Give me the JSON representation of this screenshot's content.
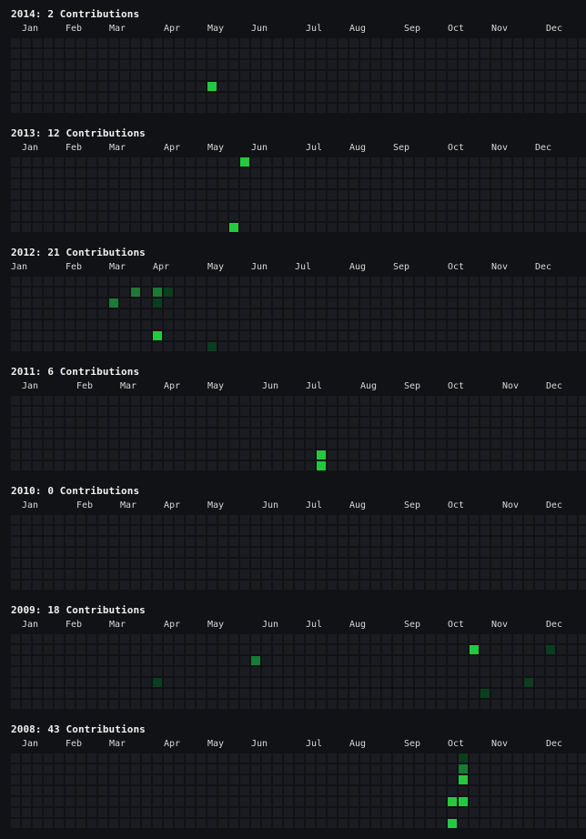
{
  "colors": {
    "background": "#111215",
    "empty": "#1a1c21",
    "level1": "#0b3d1f",
    "level2": "#1a7a36",
    "level3": "#26c840"
  },
  "chart_data": [
    {
      "type": "heatmap",
      "year": 2014,
      "title": "2014: 2 Contributions",
      "months": [
        "Jan",
        "Feb",
        "Mar",
        "Apr",
        "May",
        "Jun",
        "Jul",
        "Aug",
        "Sep",
        "Oct",
        "Nov",
        "Dec"
      ],
      "cells": [
        {
          "week": 18,
          "day": 4,
          "level": 3
        }
      ]
    },
    {
      "type": "heatmap",
      "year": 2013,
      "title": "2013: 12 Contributions",
      "months": [
        "Jan",
        "Feb",
        "Mar",
        "Apr",
        "May",
        "Jun",
        "Jul",
        "Aug",
        "Sep",
        "Oct",
        "Nov",
        "Dec"
      ],
      "cells": [
        {
          "week": 21,
          "day": 0,
          "level": 3
        },
        {
          "week": 20,
          "day": 6,
          "level": 3
        }
      ]
    },
    {
      "type": "heatmap",
      "year": 2012,
      "title": "2012: 21 Contributions",
      "months": [
        "Jan",
        "Feb",
        "Mar",
        "Apr",
        "May",
        "Jun",
        "Jul",
        "Aug",
        "Sep",
        "Oct",
        "Nov",
        "Dec"
      ],
      "cells": [
        {
          "week": 11,
          "day": 1,
          "level": 2
        },
        {
          "week": 13,
          "day": 1,
          "level": 2
        },
        {
          "week": 14,
          "day": 1,
          "level": 1
        },
        {
          "week": 9,
          "day": 2,
          "level": 2
        },
        {
          "week": 13,
          "day": 2,
          "level": 1
        },
        {
          "week": 13,
          "day": 5,
          "level": 3
        },
        {
          "week": 18,
          "day": 6,
          "level": 1
        }
      ]
    },
    {
      "type": "heatmap",
      "year": 2011,
      "title": "2011: 6 Contributions",
      "months": [
        "Jan",
        "Feb",
        "Mar",
        "Apr",
        "May",
        "Jun",
        "Jul",
        "Aug",
        "Sep",
        "Oct",
        "Nov",
        "Dec"
      ],
      "cells": [
        {
          "week": 28,
          "day": 5,
          "level": 3
        },
        {
          "week": 28,
          "day": 6,
          "level": 3
        }
      ]
    },
    {
      "type": "heatmap",
      "year": 2010,
      "title": "2010: 0 Contributions",
      "months": [
        "Jan",
        "Feb",
        "Mar",
        "Apr",
        "May",
        "Jun",
        "Jul",
        "Aug",
        "Sep",
        "Oct",
        "Nov",
        "Dec"
      ],
      "cells": []
    },
    {
      "type": "heatmap",
      "year": 2009,
      "title": "2009: 18 Contributions",
      "months": [
        "Jan",
        "Feb",
        "Mar",
        "Apr",
        "May",
        "Jun",
        "Jul",
        "Aug",
        "Sep",
        "Oct",
        "Nov",
        "Dec"
      ],
      "cells": [
        {
          "week": 42,
          "day": 1,
          "level": 3
        },
        {
          "week": 49,
          "day": 1,
          "level": 1
        },
        {
          "week": 22,
          "day": 2,
          "level": 2
        },
        {
          "week": 13,
          "day": 4,
          "level": 1
        },
        {
          "week": 47,
          "day": 4,
          "level": 1
        },
        {
          "week": 43,
          "day": 5,
          "level": 1
        }
      ]
    },
    {
      "type": "heatmap",
      "year": 2008,
      "title": "2008: 43 Contributions",
      "months": [
        "Jan",
        "Feb",
        "Mar",
        "Apr",
        "May",
        "Jun",
        "Jul",
        "Aug",
        "Sep",
        "Oct",
        "Nov",
        "Dec"
      ],
      "cells": [
        {
          "week": 41,
          "day": 0,
          "level": 1
        },
        {
          "week": 41,
          "day": 1,
          "level": 2
        },
        {
          "week": 41,
          "day": 2,
          "level": 3
        },
        {
          "week": 40,
          "day": 4,
          "level": 3
        },
        {
          "week": 41,
          "day": 4,
          "level": 3
        },
        {
          "week": 40,
          "day": 6,
          "level": 3
        }
      ]
    }
  ]
}
